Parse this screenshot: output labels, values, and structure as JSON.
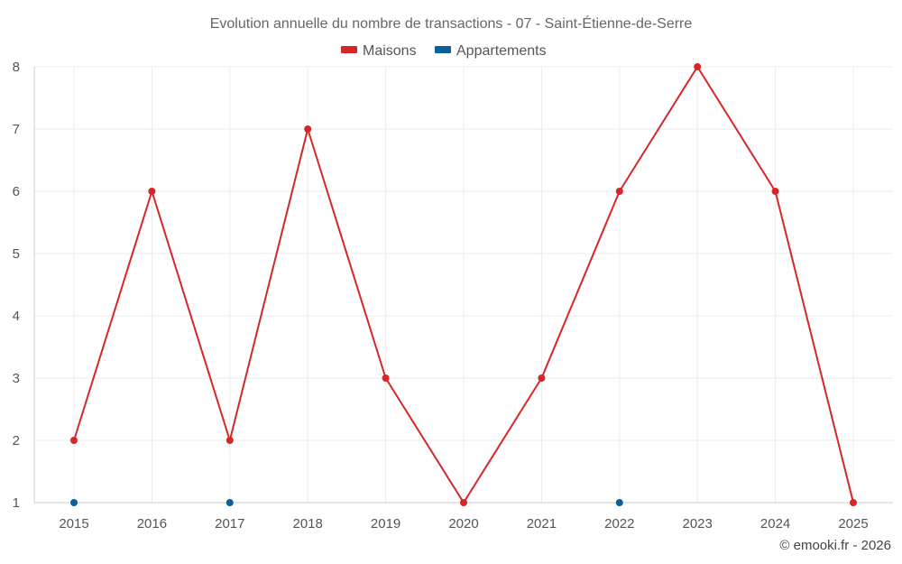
{
  "chart_data": {
    "type": "line",
    "title": "Evolution annuelle du nombre de transactions - 07 - Saint-Étienne-de-Serre",
    "xlabel": "",
    "ylabel": "",
    "x": [
      2015,
      2016,
      2017,
      2018,
      2019,
      2020,
      2021,
      2022,
      2023,
      2024,
      2025
    ],
    "ylim": [
      1,
      8
    ],
    "yticks": [
      1,
      2,
      3,
      4,
      5,
      6,
      7,
      8
    ],
    "grid": true,
    "legend_position": "top-center",
    "series": [
      {
        "name": "Maisons",
        "color": "#d62728",
        "mode": "lines+markers",
        "points": [
          [
            2015,
            2
          ],
          [
            2016,
            6
          ],
          [
            2017,
            2
          ],
          [
            2018,
            7
          ],
          [
            2019,
            3
          ],
          [
            2020,
            1
          ],
          [
            2021,
            3
          ],
          [
            2022,
            6
          ],
          [
            2023,
            8
          ],
          [
            2024,
            6
          ],
          [
            2025,
            1
          ]
        ]
      },
      {
        "name": "Appartements",
        "color": "#0b5f9a",
        "mode": "markers",
        "points": [
          [
            2015,
            1
          ],
          [
            2017,
            1
          ],
          [
            2022,
            1
          ]
        ]
      }
    ]
  },
  "credit": "© emooki.fr - 2026"
}
